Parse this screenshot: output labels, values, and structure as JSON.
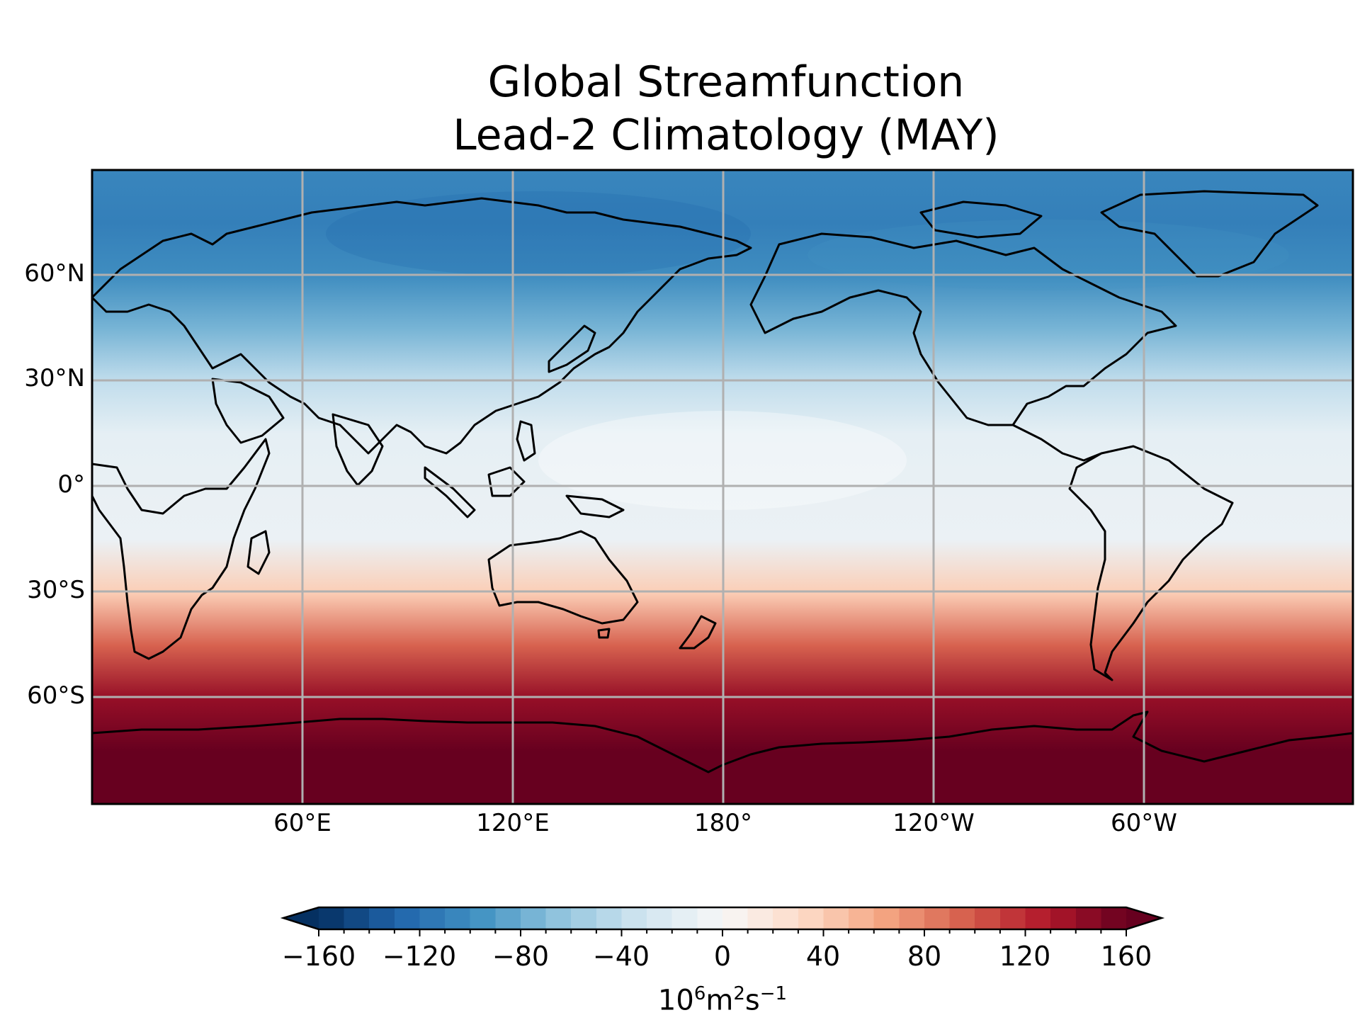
{
  "title_line1": "Global Streamfunction",
  "title_line2": "Lead-2 Climatology (MAY)",
  "map": {
    "projection": "PlateCarree",
    "central_longitude": 180,
    "extent": {
      "lon": [
        0,
        360
      ],
      "lat": [
        -90,
        90
      ]
    },
    "gridlines": true,
    "coastlines": true,
    "lat_ticks": [
      "60°N",
      "30°N",
      "0°",
      "30°S",
      "60°S"
    ],
    "lon_ticks": [
      "60°E",
      "120°E",
      "180°",
      "120°W",
      "60°W"
    ]
  },
  "chart_data": {
    "type": "heatmap",
    "title": "Global Streamfunction\nLead-2 Climatology (MAY)",
    "colormap": "RdBu_r",
    "zonal_mean_profile": {
      "lat": [
        90,
        75,
        60,
        45,
        30,
        15,
        0,
        -15,
        -30,
        -45,
        -60,
        -75,
        -90
      ],
      "value": [
        -105,
        -110,
        -100,
        -75,
        -40,
        -15,
        -12,
        -10,
        40,
        95,
        140,
        160,
        165
      ]
    },
    "colorbar": {
      "label": "10^6 m^2 s^-1",
      "min": -160,
      "max": 160,
      "step": 10,
      "extend": "both",
      "tick_labels": [
        "−160",
        "−120",
        "−80",
        "−40",
        "0",
        "40",
        "80",
        "120",
        "160"
      ]
    }
  },
  "colorbar": {
    "ticks": [
      "−160",
      "−120",
      "−80",
      "−40",
      "0",
      "40",
      "80",
      "120",
      "160"
    ],
    "label_base": "10",
    "label_exp1": "6",
    "label_m": "m",
    "label_exp2": "2",
    "label_s": "s",
    "label_exp3": "−1"
  }
}
